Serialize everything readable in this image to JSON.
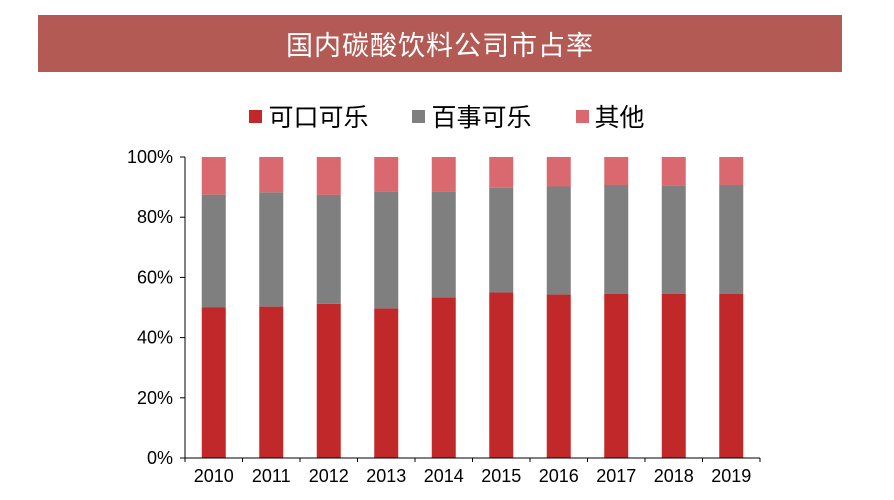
{
  "chart_data": {
    "type": "bar",
    "stacked": true,
    "title": "国内碳酸饮料公司市占率",
    "xlabel": "",
    "ylabel": "",
    "ylim": [
      0,
      100
    ],
    "y_ticks": [
      "0%",
      "20%",
      "40%",
      "60%",
      "80%",
      "100%"
    ],
    "categories": [
      "2010",
      "2011",
      "2012",
      "2013",
      "2014",
      "2015",
      "2016",
      "2017",
      "2018",
      "2019"
    ],
    "series": [
      {
        "name": "可口可乐",
        "color": "#c0282a",
        "values": [
          50,
          50.3,
          51.2,
          49.7,
          53.4,
          55,
          54.3,
          54.6,
          54.6,
          54.6
        ]
      },
      {
        "name": "百事可乐",
        "color": "#7f7f7f",
        "values": [
          37.5,
          38,
          36.2,
          38.9,
          35.2,
          34.8,
          35.9,
          36.1,
          35.9,
          36.1
        ]
      },
      {
        "name": "其他",
        "color": "#d9696f",
        "values": [
          12.5,
          11.7,
          12.6,
          11.4,
          11.4,
          10.2,
          9.8,
          9.3,
          9.5,
          9.3
        ]
      }
    ],
    "legend_position": "top-center",
    "grid": false
  }
}
